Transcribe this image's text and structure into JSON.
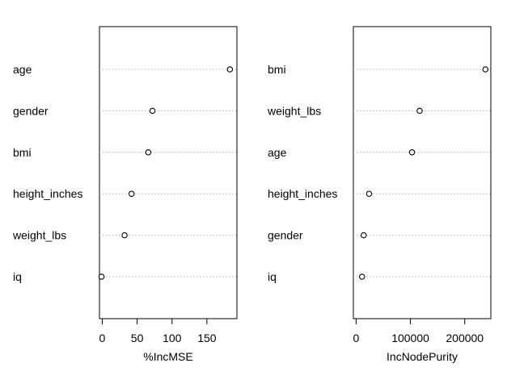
{
  "chart_data": [
    {
      "type": "scatter",
      "xlabel": "%IncMSE",
      "ylabel": "",
      "xlim": [
        -4,
        193
      ],
      "x_ticks": [
        0,
        50,
        100,
        150
      ],
      "x_tick_labels": [
        "0",
        "50",
        "100",
        "150"
      ],
      "categories": [
        "age",
        "gender",
        "bmi",
        "height_inches",
        "weight_lbs",
        "iq"
      ],
      "values": [
        183,
        72,
        66,
        42,
        32,
        -1
      ],
      "grid": "dotted-horizontal",
      "marker": "open-circle"
    },
    {
      "type": "scatter",
      "xlabel": "IncNodePurity",
      "ylabel": "",
      "xlim": [
        -5000,
        248000
      ],
      "x_ticks": [
        0,
        100000,
        200000
      ],
      "x_tick_labels": [
        "0",
        "100000",
        "200000"
      ],
      "categories": [
        "bmi",
        "weight_lbs",
        "age",
        "height_inches",
        "gender",
        "iq"
      ],
      "values": [
        238000,
        117000,
        103000,
        24000,
        14000,
        11000
      ],
      "grid": "dotted-horizontal",
      "marker": "open-circle"
    }
  ],
  "colors": {
    "points": "#000000",
    "grid": "#b0b0b0",
    "frame": "#000000"
  }
}
